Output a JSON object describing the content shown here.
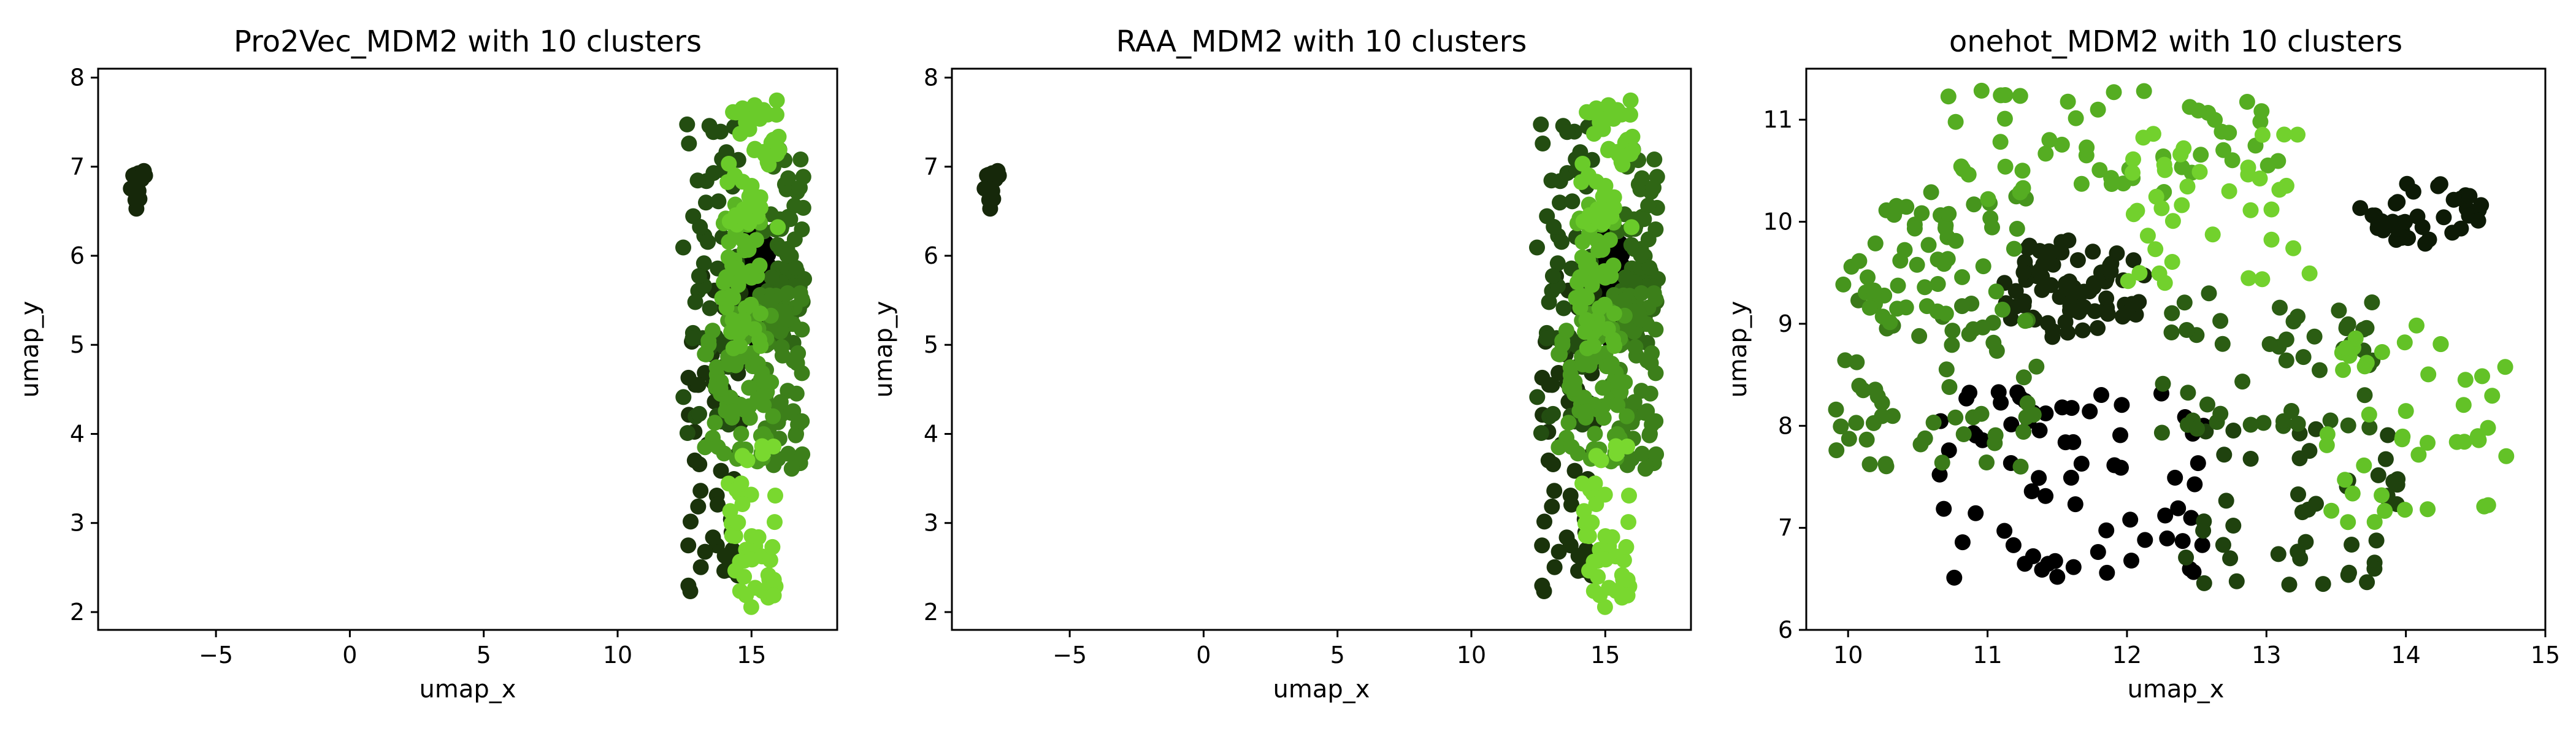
{
  "chart_data": [
    {
      "type": "scatter",
      "title": "Pro2Vec_MDM2 with 10 clusters",
      "xlabel": "umap_x",
      "ylabel": "umap_y",
      "xlim": [
        -9.4,
        18.2
      ],
      "ylim": [
        1.8,
        8.1
      ],
      "xticks": [
        -5,
        0,
        5,
        10,
        15
      ],
      "yticks": [
        2,
        3,
        4,
        5,
        6,
        7,
        8
      ],
      "grid": false,
      "legend": "none",
      "seed": 11,
      "clusters": [
        {
          "color": "#16280a",
          "n": 14,
          "cx": -7.9,
          "cy": 6.78,
          "rx": 0.35,
          "ry": 0.28,
          "shape": "ellipse"
        },
        {
          "color": "#000000",
          "n": 60,
          "cx": 15.2,
          "cy": 5.75,
          "rx": 0.55,
          "ry": 0.75,
          "shape": "ellipse"
        },
        {
          "color": "#1a330b",
          "n": 55,
          "x": [
            12.6,
            14.6
          ],
          "y": [
            2.2,
            5.8
          ],
          "shape": "box"
        },
        {
          "color": "#234d11",
          "n": 60,
          "x": [
            12.4,
            14.6
          ],
          "y": [
            4.0,
            7.5
          ],
          "shape": "box"
        },
        {
          "color": "#2f6615",
          "n": 60,
          "x": [
            15.4,
            17.0
          ],
          "y": [
            5.0,
            7.2
          ],
          "shape": "box"
        },
        {
          "color": "#3c7f1a",
          "n": 60,
          "x": [
            15.2,
            16.9
          ],
          "y": [
            3.5,
            5.6
          ],
          "shape": "box"
        },
        {
          "color": "#4a9a1f",
          "n": 70,
          "x": [
            13.2,
            15.8
          ],
          "y": [
            3.6,
            5.5
          ],
          "shape": "box"
        },
        {
          "color": "#5ab524",
          "n": 50,
          "x": [
            13.9,
            15.4
          ],
          "y": [
            4.9,
            6.6
          ],
          "shape": "box"
        },
        {
          "color": "#6acb2a",
          "n": 50,
          "x": [
            14.1,
            16.1
          ],
          "y": [
            6.3,
            7.75
          ],
          "shape": "box"
        },
        {
          "color": "#79d82f",
          "n": 45,
          "x": [
            14.1,
            15.9
          ],
          "y": [
            2.05,
            3.9
          ],
          "shape": "box"
        }
      ]
    },
    {
      "type": "scatter",
      "title": "RAA_MDM2 with 10 clusters",
      "xlabel": "umap_x",
      "ylabel": "umap_y",
      "xlim": [
        -9.4,
        18.2
      ],
      "ylim": [
        1.8,
        8.1
      ],
      "xticks": [
        -5,
        0,
        5,
        10,
        15
      ],
      "yticks": [
        2,
        3,
        4,
        5,
        6,
        7,
        8
      ],
      "grid": false,
      "legend": "none",
      "seed": 11,
      "clusters": [
        {
          "color": "#16280a",
          "n": 14,
          "cx": -7.9,
          "cy": 6.78,
          "rx": 0.35,
          "ry": 0.28,
          "shape": "ellipse"
        },
        {
          "color": "#000000",
          "n": 60,
          "cx": 15.2,
          "cy": 5.75,
          "rx": 0.55,
          "ry": 0.75,
          "shape": "ellipse"
        },
        {
          "color": "#1a330b",
          "n": 55,
          "x": [
            12.6,
            14.6
          ],
          "y": [
            2.2,
            5.8
          ],
          "shape": "box"
        },
        {
          "color": "#234d11",
          "n": 60,
          "x": [
            12.4,
            14.6
          ],
          "y": [
            4.0,
            7.5
          ],
          "shape": "box"
        },
        {
          "color": "#2f6615",
          "n": 60,
          "x": [
            15.4,
            17.0
          ],
          "y": [
            5.0,
            7.2
          ],
          "shape": "box"
        },
        {
          "color": "#3c7f1a",
          "n": 60,
          "x": [
            15.2,
            16.9
          ],
          "y": [
            3.5,
            5.6
          ],
          "shape": "box"
        },
        {
          "color": "#4a9a1f",
          "n": 70,
          "x": [
            13.2,
            15.8
          ],
          "y": [
            3.6,
            5.5
          ],
          "shape": "box"
        },
        {
          "color": "#5ab524",
          "n": 50,
          "x": [
            13.9,
            15.4
          ],
          "y": [
            4.9,
            6.6
          ],
          "shape": "box"
        },
        {
          "color": "#6acb2a",
          "n": 50,
          "x": [
            14.1,
            16.1
          ],
          "y": [
            6.3,
            7.75
          ],
          "shape": "box"
        },
        {
          "color": "#79d82f",
          "n": 45,
          "x": [
            14.1,
            15.9
          ],
          "y": [
            2.05,
            3.9
          ],
          "shape": "box"
        }
      ]
    },
    {
      "type": "scatter",
      "title": "onehot_MDM2 with 10 clusters",
      "xlabel": "umap_x",
      "ylabel": "umap_y",
      "xlim": [
        9.7,
        15.0
      ],
      "ylim": [
        6.0,
        11.5
      ],
      "xticks": [
        10,
        11,
        12,
        13,
        14,
        15
      ],
      "yticks": [
        6,
        7,
        8,
        9,
        10,
        11
      ],
      "grid": false,
      "legend": "none",
      "seed": 29,
      "clusters": [
        {
          "color": "#000000",
          "n": 70,
          "x": [
            10.6,
            12.6
          ],
          "y": [
            6.5,
            8.4
          ],
          "shape": "box"
        },
        {
          "color": "#0d1a06",
          "n": 40,
          "cx": 14.1,
          "cy": 10.1,
          "rx": 0.45,
          "ry": 0.35,
          "shape": "ellipse"
        },
        {
          "color": "#16280a",
          "n": 75,
          "cx": 11.6,
          "cy": 9.35,
          "rx": 0.55,
          "ry": 0.5,
          "shape": "ellipse"
        },
        {
          "color": "#1f420e",
          "n": 45,
          "x": [
            12.4,
            14.0
          ],
          "y": [
            6.4,
            8.0
          ],
          "shape": "box"
        },
        {
          "color": "#2b5d13",
          "n": 50,
          "x": [
            12.2,
            13.9
          ],
          "y": [
            7.9,
            9.3
          ],
          "shape": "box"
        },
        {
          "color": "#3a7a19",
          "n": 55,
          "x": [
            9.9,
            11.4
          ],
          "y": [
            7.6,
            9.3
          ],
          "shape": "box"
        },
        {
          "color": "#46951d",
          "n": 55,
          "x": [
            9.95,
            11.3
          ],
          "y": [
            9.0,
            10.3
          ],
          "shape": "box"
        },
        {
          "color": "#55ad22",
          "n": 55,
          "x": [
            10.7,
            13.1
          ],
          "y": [
            10.2,
            11.3
          ],
          "shape": "box"
        },
        {
          "color": "#63c227",
          "n": 45,
          "x": [
            13.4,
            14.8
          ],
          "y": [
            6.9,
            9.0
          ],
          "shape": "box"
        },
        {
          "color": "#72d12d",
          "n": 40,
          "x": [
            12.0,
            13.4
          ],
          "y": [
            9.4,
            11.0
          ],
          "shape": "box"
        }
      ]
    }
  ]
}
